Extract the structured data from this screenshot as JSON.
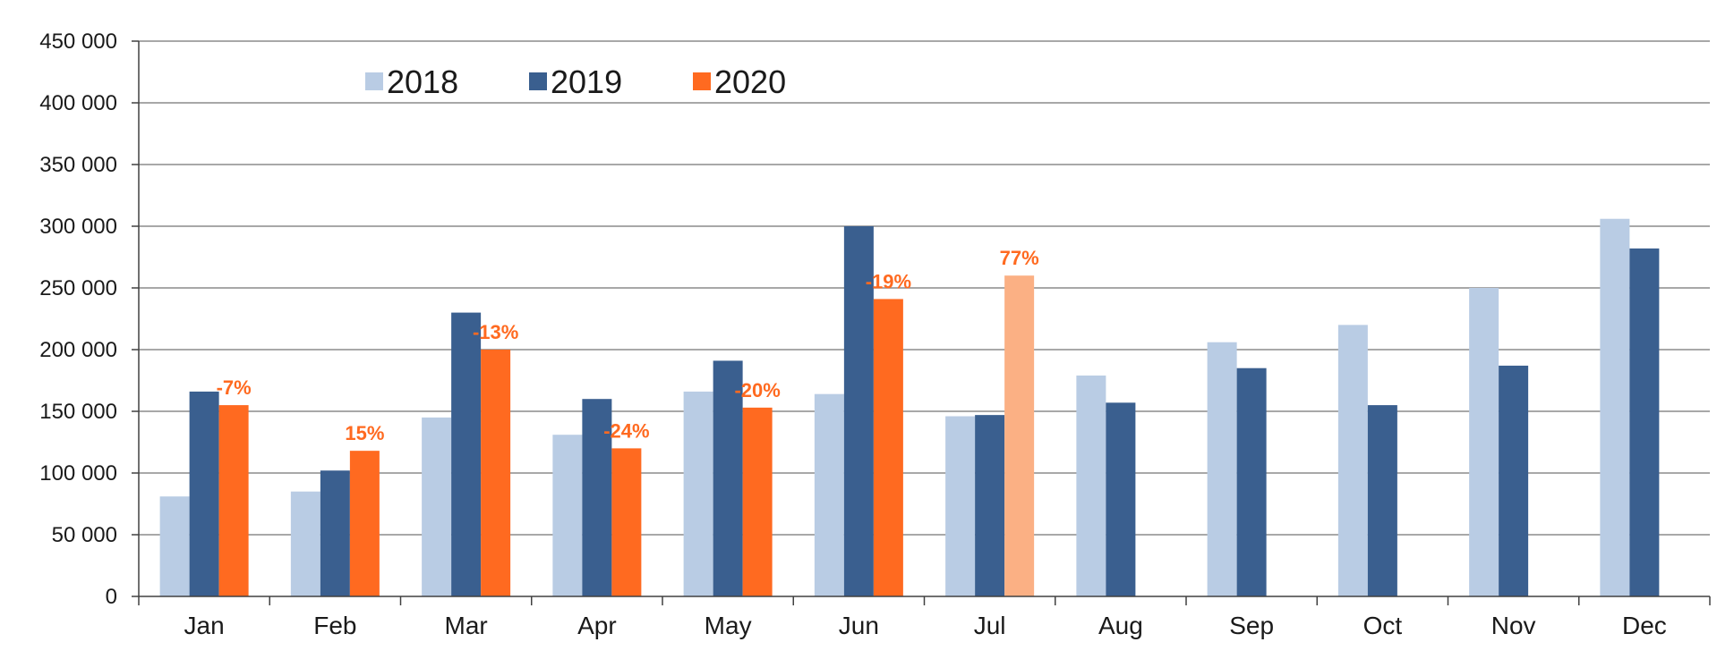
{
  "chart_data": {
    "type": "bar",
    "categories": [
      "Jan",
      "Feb",
      "Mar",
      "Apr",
      "May",
      "Jun",
      "Jul",
      "Aug",
      "Sep",
      "Oct",
      "Nov",
      "Dec"
    ],
    "series": [
      {
        "name": "2018",
        "color": "#b9cce4",
        "values": [
          81000,
          85000,
          145000,
          131000,
          166000,
          164000,
          146000,
          179000,
          206000,
          220000,
          250000,
          306000
        ]
      },
      {
        "name": "2019",
        "color": "#3a5f8f",
        "values": [
          166000,
          102000,
          230000,
          160000,
          191000,
          300000,
          147000,
          157000,
          185000,
          155000,
          187000,
          282000
        ]
      },
      {
        "name": "2020",
        "color": "#ff6a20",
        "values": [
          155000,
          118000,
          200000,
          120000,
          153000,
          241000,
          260000,
          null,
          null,
          null,
          null,
          null
        ]
      }
    ],
    "highlight": {
      "series_index": 2,
      "category_index": 6,
      "color": "#fbb084"
    },
    "annotations": [
      {
        "category": "Jan",
        "text": "-7%"
      },
      {
        "category": "Feb",
        "text": "15%"
      },
      {
        "category": "Mar",
        "text": "-13%"
      },
      {
        "category": "Apr",
        "text": "-24%"
      },
      {
        "category": "May",
        "text": "-20%"
      },
      {
        "category": "Jun",
        "text": "-19%"
      },
      {
        "category": "Jul",
        "text": "77%"
      }
    ],
    "yticks": [
      "0",
      "50 000",
      "100 000",
      "150 000",
      "200 000",
      "250 000",
      "300 000",
      "350 000",
      "400 000",
      "450 000"
    ],
    "ylim": [
      0,
      450000
    ],
    "grid": true,
    "legend_position": "top-left"
  }
}
